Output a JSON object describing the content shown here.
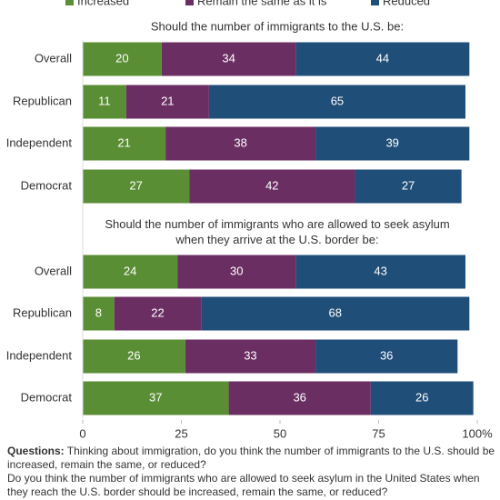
{
  "chart_data": {
    "type": "bar",
    "orientation": "horizontal",
    "stacked": true,
    "legend": [
      {
        "name": "Increased",
        "color": "#5a8e34"
      },
      {
        "name": "Remain the same as it is",
        "color": "#6b2e63"
      },
      {
        "name": "Reduced",
        "color": "#1f4e79"
      }
    ],
    "panels": [
      {
        "title": "Should the number of immigrants to the U.S. be:",
        "categories": [
          "Overall",
          "Republican",
          "Independent",
          "Democrat"
        ],
        "series": [
          {
            "values": [
              20,
              11,
              21,
              27
            ]
          },
          {
            "values": [
              34,
              21,
              38,
              42
            ]
          },
          {
            "values": [
              44,
              65,
              39,
              27
            ]
          }
        ]
      },
      {
        "title": "Should the number of immigrants who are allowed to seek asylum when they arrive at the U.S. border be:",
        "categories": [
          "Overall",
          "Republican",
          "Independent",
          "Democrat"
        ],
        "series": [
          {
            "values": [
              24,
              8,
              26,
              37
            ]
          },
          {
            "values": [
              30,
              22,
              33,
              36
            ]
          },
          {
            "values": [
              43,
              68,
              36,
              26
            ]
          }
        ]
      }
    ],
    "xlim": [
      0,
      100
    ],
    "xticks": [
      0,
      25,
      50,
      75,
      {
        "value": 100,
        "label": "100%"
      }
    ],
    "notes": {
      "label": "Questions:",
      "lines": [
        "Thinking about immigration, do you think the number of immigrants to the U.S. should be increased, remain the same, or reduced?",
        "Do you think the number of immigrants who are allowed to seek asylum in the United States when they reach the U.S. border should be increased, remain the same, or reduced?"
      ]
    }
  }
}
